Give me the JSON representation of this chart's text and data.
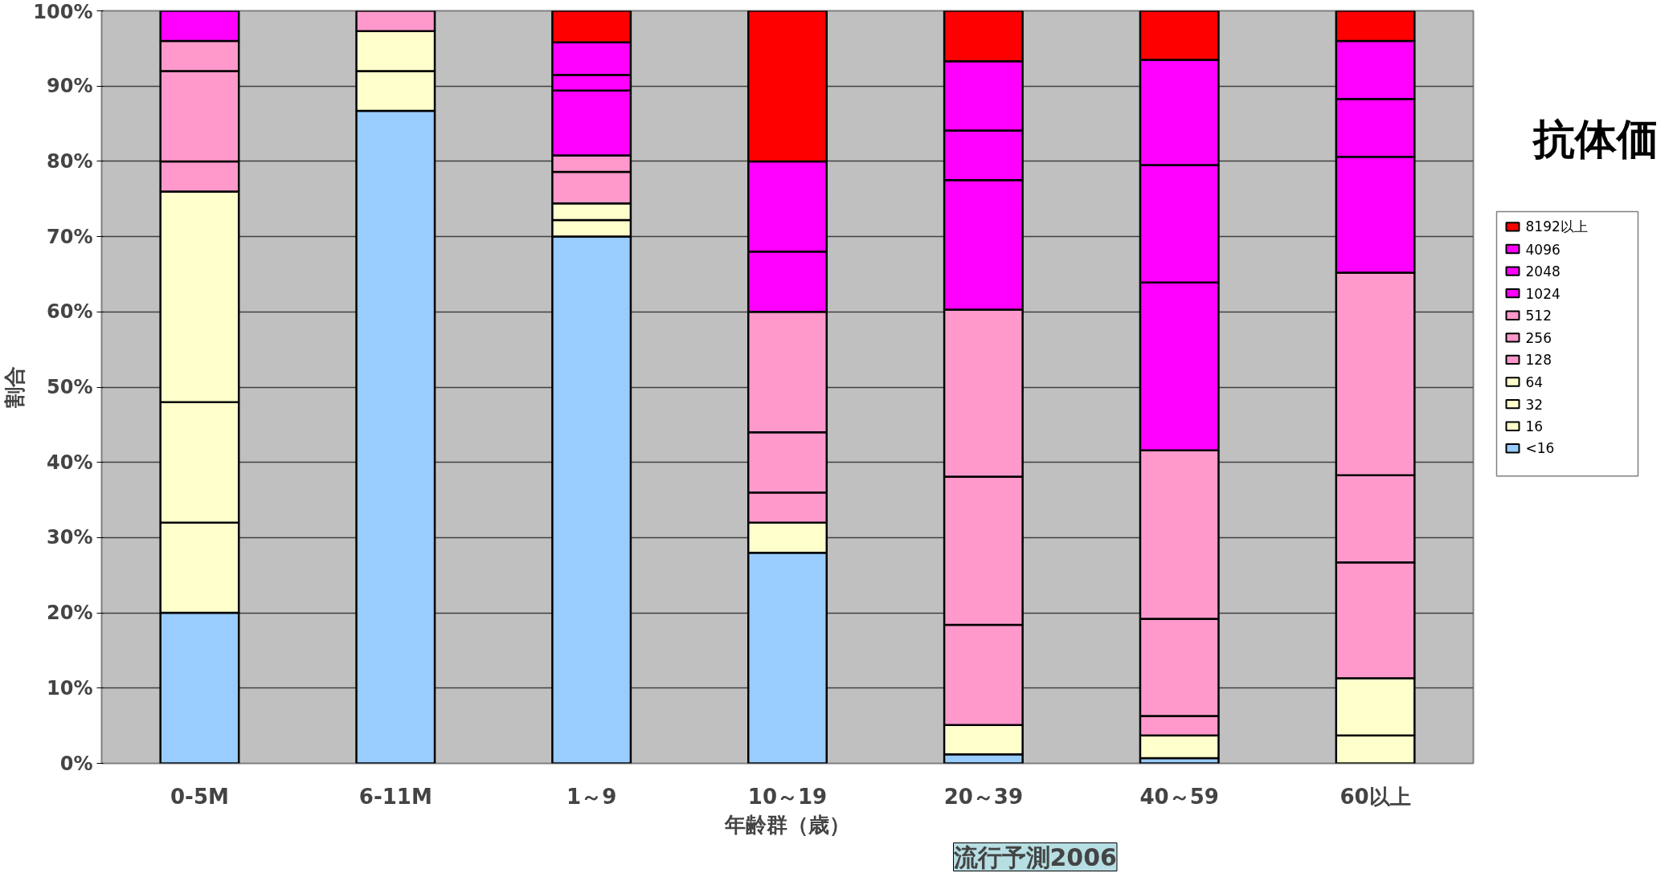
{
  "chart_data": {
    "type": "bar",
    "stacked": true,
    "categories": [
      "0-5M",
      "6-11M",
      "1～9",
      "10～19",
      "20～39",
      "40～59",
      "60以上"
    ],
    "xlabel": "年齢群（歳）",
    "ylabel": "割合",
    "legend_title": "抗体価",
    "ylim": [
      0,
      100
    ],
    "yticks": [
      {
        "value": 0,
        "label": "0%"
      },
      {
        "value": 10,
        "label": "10%"
      },
      {
        "value": 20,
        "label": "20%"
      },
      {
        "value": 30,
        "label": "30%"
      },
      {
        "value": 40,
        "label": "40%"
      },
      {
        "value": 50,
        "label": "50%"
      },
      {
        "value": 60,
        "label": "60%"
      },
      {
        "value": 70,
        "label": "70%"
      },
      {
        "value": 80,
        "label": "80%"
      },
      {
        "value": 90,
        "label": "90%"
      },
      {
        "value": 100,
        "label": "100%"
      }
    ],
    "grid": "y",
    "legend": "right",
    "annotations": [
      "流行予測2006"
    ],
    "series": [
      {
        "name": "<16",
        "color": "#99ccff",
        "values": [
          20,
          86.7,
          70,
          28,
          1.2,
          0.7,
          0
        ]
      },
      {
        "name": "16",
        "color": "#ffffcc",
        "values": [
          12,
          5.3,
          2.2,
          4,
          3.9,
          3.0,
          3.7
        ]
      },
      {
        "name": "32",
        "color": "#ffffcc",
        "values": [
          16,
          5.3,
          2.2,
          0,
          0,
          0,
          7.6
        ]
      },
      {
        "name": "64",
        "color": "#ffffcc",
        "values": [
          28,
          0,
          0,
          0,
          0,
          0,
          0
        ]
      },
      {
        "name": "128",
        "color": "#ff99cc",
        "values": [
          4,
          2.7,
          4.2,
          4,
          13.3,
          2.6,
          15.4
        ]
      },
      {
        "name": "256",
        "color": "#ff99cc",
        "values": [
          12,
          0,
          2.2,
          8,
          19.7,
          12.9,
          11.6
        ]
      },
      {
        "name": "512",
        "color": "#ff99cc",
        "values": [
          4,
          0,
          0,
          16,
          22.2,
          22.4,
          26.9
        ]
      },
      {
        "name": "1024",
        "color": "#ff00ff",
        "values": [
          4,
          0,
          8.6,
          8,
          17.2,
          22.3,
          15.4
        ]
      },
      {
        "name": "2048",
        "color": "#ff00ff",
        "values": [
          0,
          0,
          2.1,
          12,
          6.6,
          15.6,
          7.7
        ]
      },
      {
        "name": "4096",
        "color": "#ff00ff",
        "values": [
          0,
          0,
          4.3,
          0,
          9.2,
          14.0,
          7.7
        ]
      },
      {
        "name": "8192以上",
        "color": "#ff0000",
        "values": [
          0,
          0,
          4.2,
          20,
          6.7,
          6.5,
          4.0
        ]
      }
    ]
  }
}
